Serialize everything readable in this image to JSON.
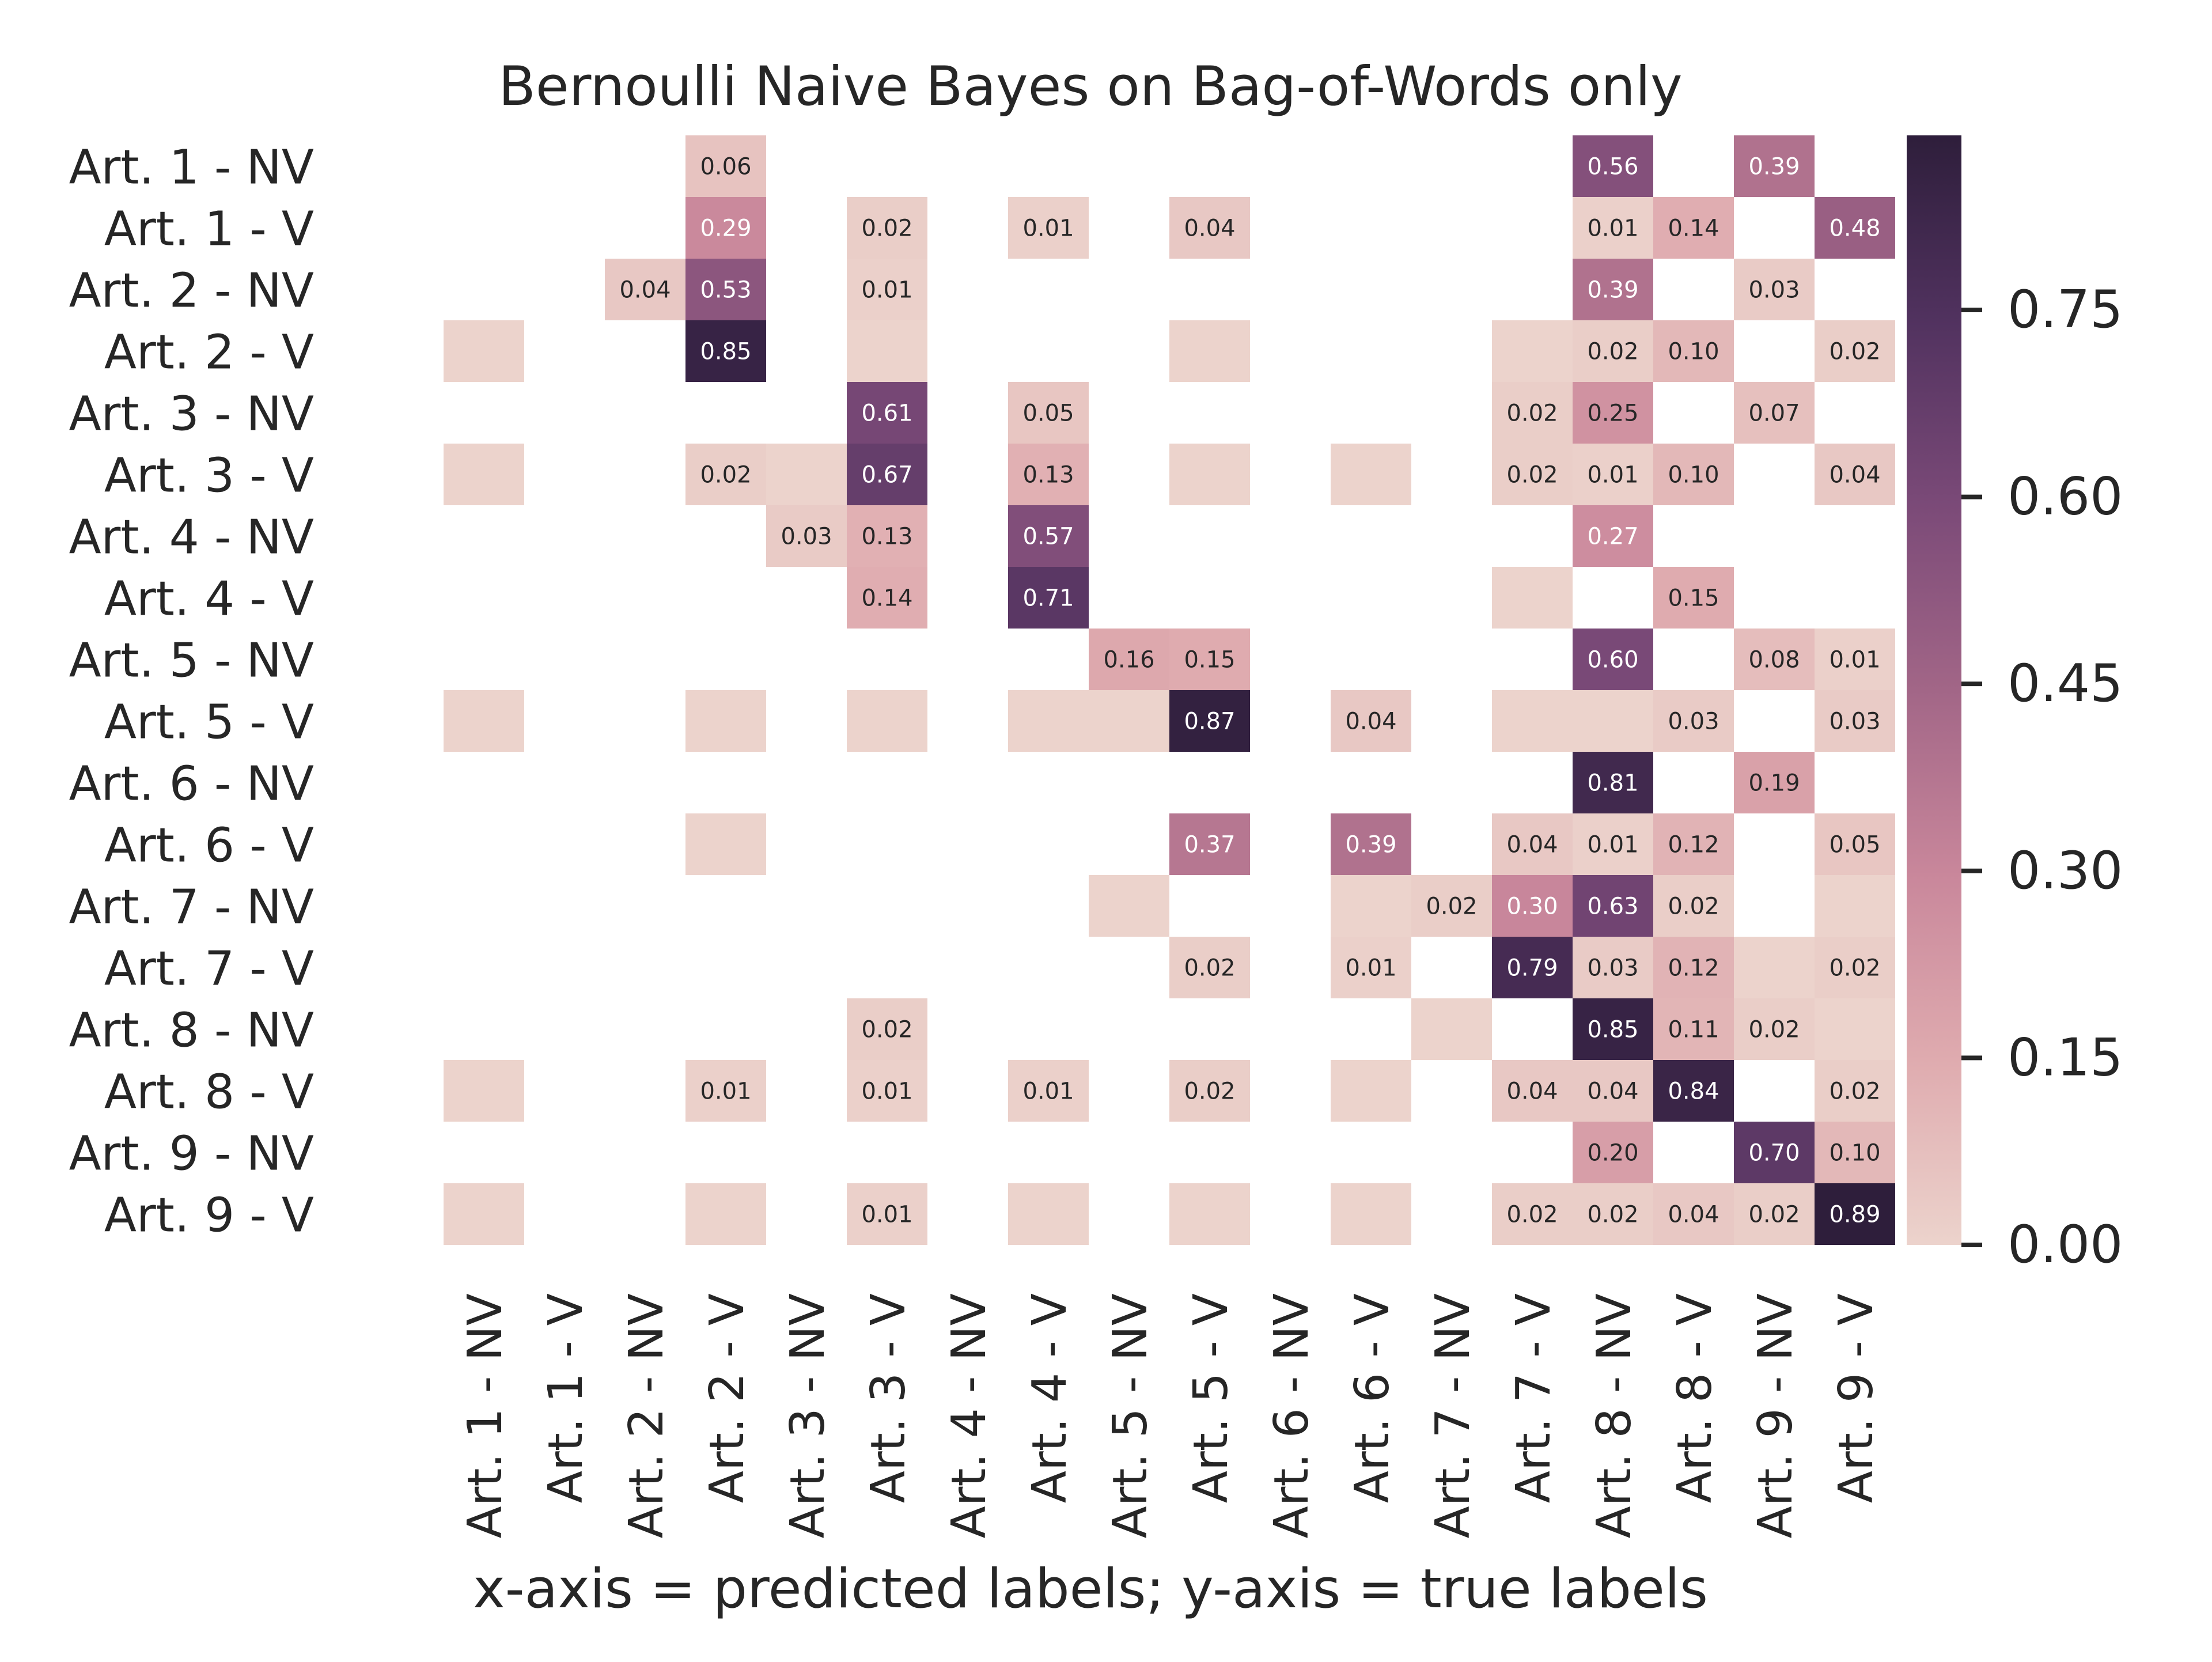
{
  "chart_data": {
    "type": "heatmap",
    "title": "Bernoulli Naive Bayes on Bag-of-Words only",
    "xlabel": "x-axis = predicted labels; y-axis = true labels",
    "ylabel": "",
    "labels": [
      "Art. 1 - NV",
      "Art. 1 - V",
      "Art. 2 - NV",
      "Art. 2 - V",
      "Art. 3 - NV",
      "Art. 3 - V",
      "Art. 4 - NV",
      "Art. 4 - V",
      "Art. 5 - NV",
      "Art. 5 - V",
      "Art. 6 - NV",
      "Art. 6 - V",
      "Art. 7 - NV",
      "Art. 7 - V",
      "Art. 8 - NV",
      "Art. 8 - V",
      "Art. 9 - NV",
      "Art. 9 - V"
    ],
    "cells": [
      {
        "row": 0,
        "col": 3,
        "value": 0.06,
        "label": "0.06"
      },
      {
        "row": 0,
        "col": 14,
        "value": 0.56,
        "label": "0.56"
      },
      {
        "row": 0,
        "col": 16,
        "value": 0.39,
        "label": "0.39"
      },
      {
        "row": 1,
        "col": 3,
        "value": 0.29,
        "label": "0.29"
      },
      {
        "row": 1,
        "col": 5,
        "value": 0.02,
        "label": "0.02"
      },
      {
        "row": 1,
        "col": 7,
        "value": 0.01,
        "label": "0.01"
      },
      {
        "row": 1,
        "col": 9,
        "value": 0.04,
        "label": "0.04"
      },
      {
        "row": 1,
        "col": 14,
        "value": 0.01,
        "label": "0.01"
      },
      {
        "row": 1,
        "col": 15,
        "value": 0.14,
        "label": "0.14"
      },
      {
        "row": 1,
        "col": 17,
        "value": 0.48,
        "label": "0.48"
      },
      {
        "row": 2,
        "col": 2,
        "value": 0.04,
        "label": "0.04"
      },
      {
        "row": 2,
        "col": 3,
        "value": 0.53,
        "label": "0.53"
      },
      {
        "row": 2,
        "col": 5,
        "value": 0.01,
        "label": "0.01"
      },
      {
        "row": 2,
        "col": 14,
        "value": 0.39,
        "label": "0.39"
      },
      {
        "row": 2,
        "col": 16,
        "value": 0.03,
        "label": "0.03"
      },
      {
        "row": 3,
        "col": 0,
        "value": 0.0,
        "label": ""
      },
      {
        "row": 3,
        "col": 3,
        "value": 0.85,
        "label": "0.85"
      },
      {
        "row": 3,
        "col": 5,
        "value": 0.0,
        "label": ""
      },
      {
        "row": 3,
        "col": 9,
        "value": 0.0,
        "label": ""
      },
      {
        "row": 3,
        "col": 13,
        "value": 0.0,
        "label": ""
      },
      {
        "row": 3,
        "col": 14,
        "value": 0.02,
        "label": "0.02"
      },
      {
        "row": 3,
        "col": 15,
        "value": 0.1,
        "label": "0.10"
      },
      {
        "row": 3,
        "col": 17,
        "value": 0.02,
        "label": "0.02"
      },
      {
        "row": 4,
        "col": 5,
        "value": 0.61,
        "label": "0.61"
      },
      {
        "row": 4,
        "col": 7,
        "value": 0.05,
        "label": "0.05"
      },
      {
        "row": 4,
        "col": 13,
        "value": 0.02,
        "label": "0.02"
      },
      {
        "row": 4,
        "col": 14,
        "value": 0.25,
        "label": "0.25"
      },
      {
        "row": 4,
        "col": 16,
        "value": 0.07,
        "label": "0.07"
      },
      {
        "row": 5,
        "col": 0,
        "value": 0.0,
        "label": ""
      },
      {
        "row": 5,
        "col": 3,
        "value": 0.02,
        "label": "0.02"
      },
      {
        "row": 5,
        "col": 4,
        "value": 0.0,
        "label": ""
      },
      {
        "row": 5,
        "col": 5,
        "value": 0.67,
        "label": "0.67"
      },
      {
        "row": 5,
        "col": 7,
        "value": 0.13,
        "label": "0.13"
      },
      {
        "row": 5,
        "col": 9,
        "value": 0.0,
        "label": ""
      },
      {
        "row": 5,
        "col": 11,
        "value": 0.0,
        "label": ""
      },
      {
        "row": 5,
        "col": 13,
        "value": 0.02,
        "label": "0.02"
      },
      {
        "row": 5,
        "col": 14,
        "value": 0.01,
        "label": "0.01"
      },
      {
        "row": 5,
        "col": 15,
        "value": 0.1,
        "label": "0.10"
      },
      {
        "row": 5,
        "col": 17,
        "value": 0.04,
        "label": "0.04"
      },
      {
        "row": 6,
        "col": 4,
        "value": 0.03,
        "label": "0.03"
      },
      {
        "row": 6,
        "col": 5,
        "value": 0.13,
        "label": "0.13"
      },
      {
        "row": 6,
        "col": 7,
        "value": 0.57,
        "label": "0.57"
      },
      {
        "row": 6,
        "col": 14,
        "value": 0.27,
        "label": "0.27"
      },
      {
        "row": 7,
        "col": 5,
        "value": 0.14,
        "label": "0.14"
      },
      {
        "row": 7,
        "col": 7,
        "value": 0.71,
        "label": "0.71"
      },
      {
        "row": 7,
        "col": 13,
        "value": 0.0,
        "label": ""
      },
      {
        "row": 7,
        "col": 15,
        "value": 0.15,
        "label": "0.15"
      },
      {
        "row": 8,
        "col": 8,
        "value": 0.16,
        "label": "0.16"
      },
      {
        "row": 8,
        "col": 9,
        "value": 0.15,
        "label": "0.15"
      },
      {
        "row": 8,
        "col": 14,
        "value": 0.6,
        "label": "0.60"
      },
      {
        "row": 8,
        "col": 16,
        "value": 0.08,
        "label": "0.08"
      },
      {
        "row": 8,
        "col": 17,
        "value": 0.01,
        "label": "0.01"
      },
      {
        "row": 9,
        "col": 0,
        "value": 0.0,
        "label": ""
      },
      {
        "row": 9,
        "col": 3,
        "value": 0.0,
        "label": ""
      },
      {
        "row": 9,
        "col": 5,
        "value": 0.0,
        "label": ""
      },
      {
        "row": 9,
        "col": 7,
        "value": 0.0,
        "label": ""
      },
      {
        "row": 9,
        "col": 8,
        "value": 0.0,
        "label": ""
      },
      {
        "row": 9,
        "col": 9,
        "value": 0.87,
        "label": "0.87"
      },
      {
        "row": 9,
        "col": 11,
        "value": 0.04,
        "label": "0.04"
      },
      {
        "row": 9,
        "col": 13,
        "value": 0.0,
        "label": ""
      },
      {
        "row": 9,
        "col": 14,
        "value": 0.0,
        "label": ""
      },
      {
        "row": 9,
        "col": 15,
        "value": 0.03,
        "label": "0.03"
      },
      {
        "row": 9,
        "col": 17,
        "value": 0.03,
        "label": "0.03"
      },
      {
        "row": 10,
        "col": 14,
        "value": 0.81,
        "label": "0.81"
      },
      {
        "row": 10,
        "col": 16,
        "value": 0.19,
        "label": "0.19"
      },
      {
        "row": 11,
        "col": 3,
        "value": 0.0,
        "label": ""
      },
      {
        "row": 11,
        "col": 9,
        "value": 0.37,
        "label": "0.37"
      },
      {
        "row": 11,
        "col": 11,
        "value": 0.39,
        "label": "0.39"
      },
      {
        "row": 11,
        "col": 13,
        "value": 0.04,
        "label": "0.04"
      },
      {
        "row": 11,
        "col": 14,
        "value": 0.01,
        "label": "0.01"
      },
      {
        "row": 11,
        "col": 15,
        "value": 0.12,
        "label": "0.12"
      },
      {
        "row": 11,
        "col": 17,
        "value": 0.05,
        "label": "0.05"
      },
      {
        "row": 12,
        "col": 8,
        "value": 0.0,
        "label": ""
      },
      {
        "row": 12,
        "col": 11,
        "value": 0.0,
        "label": ""
      },
      {
        "row": 12,
        "col": 12,
        "value": 0.02,
        "label": "0.02"
      },
      {
        "row": 12,
        "col": 13,
        "value": 0.3,
        "label": "0.30"
      },
      {
        "row": 12,
        "col": 14,
        "value": 0.63,
        "label": "0.63"
      },
      {
        "row": 12,
        "col": 15,
        "value": 0.02,
        "label": "0.02"
      },
      {
        "row": 12,
        "col": 17,
        "value": 0.0,
        "label": ""
      },
      {
        "row": 13,
        "col": 9,
        "value": 0.02,
        "label": "0.02"
      },
      {
        "row": 13,
        "col": 11,
        "value": 0.01,
        "label": "0.01"
      },
      {
        "row": 13,
        "col": 13,
        "value": 0.79,
        "label": "0.79"
      },
      {
        "row": 13,
        "col": 14,
        "value": 0.03,
        "label": "0.03"
      },
      {
        "row": 13,
        "col": 15,
        "value": 0.12,
        "label": "0.12"
      },
      {
        "row": 13,
        "col": 16,
        "value": 0.0,
        "label": ""
      },
      {
        "row": 13,
        "col": 17,
        "value": 0.02,
        "label": "0.02"
      },
      {
        "row": 14,
        "col": 5,
        "value": 0.02,
        "label": "0.02"
      },
      {
        "row": 14,
        "col": 12,
        "value": 0.0,
        "label": ""
      },
      {
        "row": 14,
        "col": 14,
        "value": 0.85,
        "label": "0.85"
      },
      {
        "row": 14,
        "col": 15,
        "value": 0.11,
        "label": "0.11"
      },
      {
        "row": 14,
        "col": 16,
        "value": 0.02,
        "label": "0.02"
      },
      {
        "row": 14,
        "col": 17,
        "value": 0.0,
        "label": ""
      },
      {
        "row": 15,
        "col": 0,
        "value": 0.0,
        "label": ""
      },
      {
        "row": 15,
        "col": 3,
        "value": 0.01,
        "label": "0.01"
      },
      {
        "row": 15,
        "col": 5,
        "value": 0.01,
        "label": "0.01"
      },
      {
        "row": 15,
        "col": 7,
        "value": 0.01,
        "label": "0.01"
      },
      {
        "row": 15,
        "col": 9,
        "value": 0.02,
        "label": "0.02"
      },
      {
        "row": 15,
        "col": 11,
        "value": 0.0,
        "label": ""
      },
      {
        "row": 15,
        "col": 13,
        "value": 0.04,
        "label": "0.04"
      },
      {
        "row": 15,
        "col": 14,
        "value": 0.04,
        "label": "0.04"
      },
      {
        "row": 15,
        "col": 15,
        "value": 0.84,
        "label": "0.84"
      },
      {
        "row": 15,
        "col": 17,
        "value": 0.02,
        "label": "0.02"
      },
      {
        "row": 16,
        "col": 14,
        "value": 0.2,
        "label": "0.20"
      },
      {
        "row": 16,
        "col": 16,
        "value": 0.7,
        "label": "0.70"
      },
      {
        "row": 16,
        "col": 17,
        "value": 0.1,
        "label": "0.10"
      },
      {
        "row": 17,
        "col": 0,
        "value": 0.0,
        "label": ""
      },
      {
        "row": 17,
        "col": 3,
        "value": 0.0,
        "label": ""
      },
      {
        "row": 17,
        "col": 5,
        "value": 0.01,
        "label": "0.01"
      },
      {
        "row": 17,
        "col": 7,
        "value": 0.0,
        "label": ""
      },
      {
        "row": 17,
        "col": 9,
        "value": 0.0,
        "label": ""
      },
      {
        "row": 17,
        "col": 11,
        "value": 0.0,
        "label": ""
      },
      {
        "row": 17,
        "col": 13,
        "value": 0.02,
        "label": "0.02"
      },
      {
        "row": 17,
        "col": 14,
        "value": 0.02,
        "label": "0.02"
      },
      {
        "row": 17,
        "col": 15,
        "value": 0.04,
        "label": "0.04"
      },
      {
        "row": 17,
        "col": 16,
        "value": 0.02,
        "label": "0.02"
      },
      {
        "row": 17,
        "col": 17,
        "value": 0.89,
        "label": "0.89"
      }
    ],
    "colorbar": {
      "vmin": 0.0,
      "vmax": 0.89,
      "ticks": [
        0.0,
        0.15,
        0.3,
        0.45,
        0.6,
        0.75
      ],
      "tick_labels": [
        "0.00",
        "0.15",
        "0.30",
        "0.45",
        "0.60",
        "0.75"
      ],
      "colors": [
        "#ecd3cc",
        "#dfabaf",
        "#c9879b",
        "#a26687",
        "#7b4a78",
        "#51325f",
        "#2e1e3b"
      ]
    },
    "grid": false,
    "legend": "right"
  }
}
